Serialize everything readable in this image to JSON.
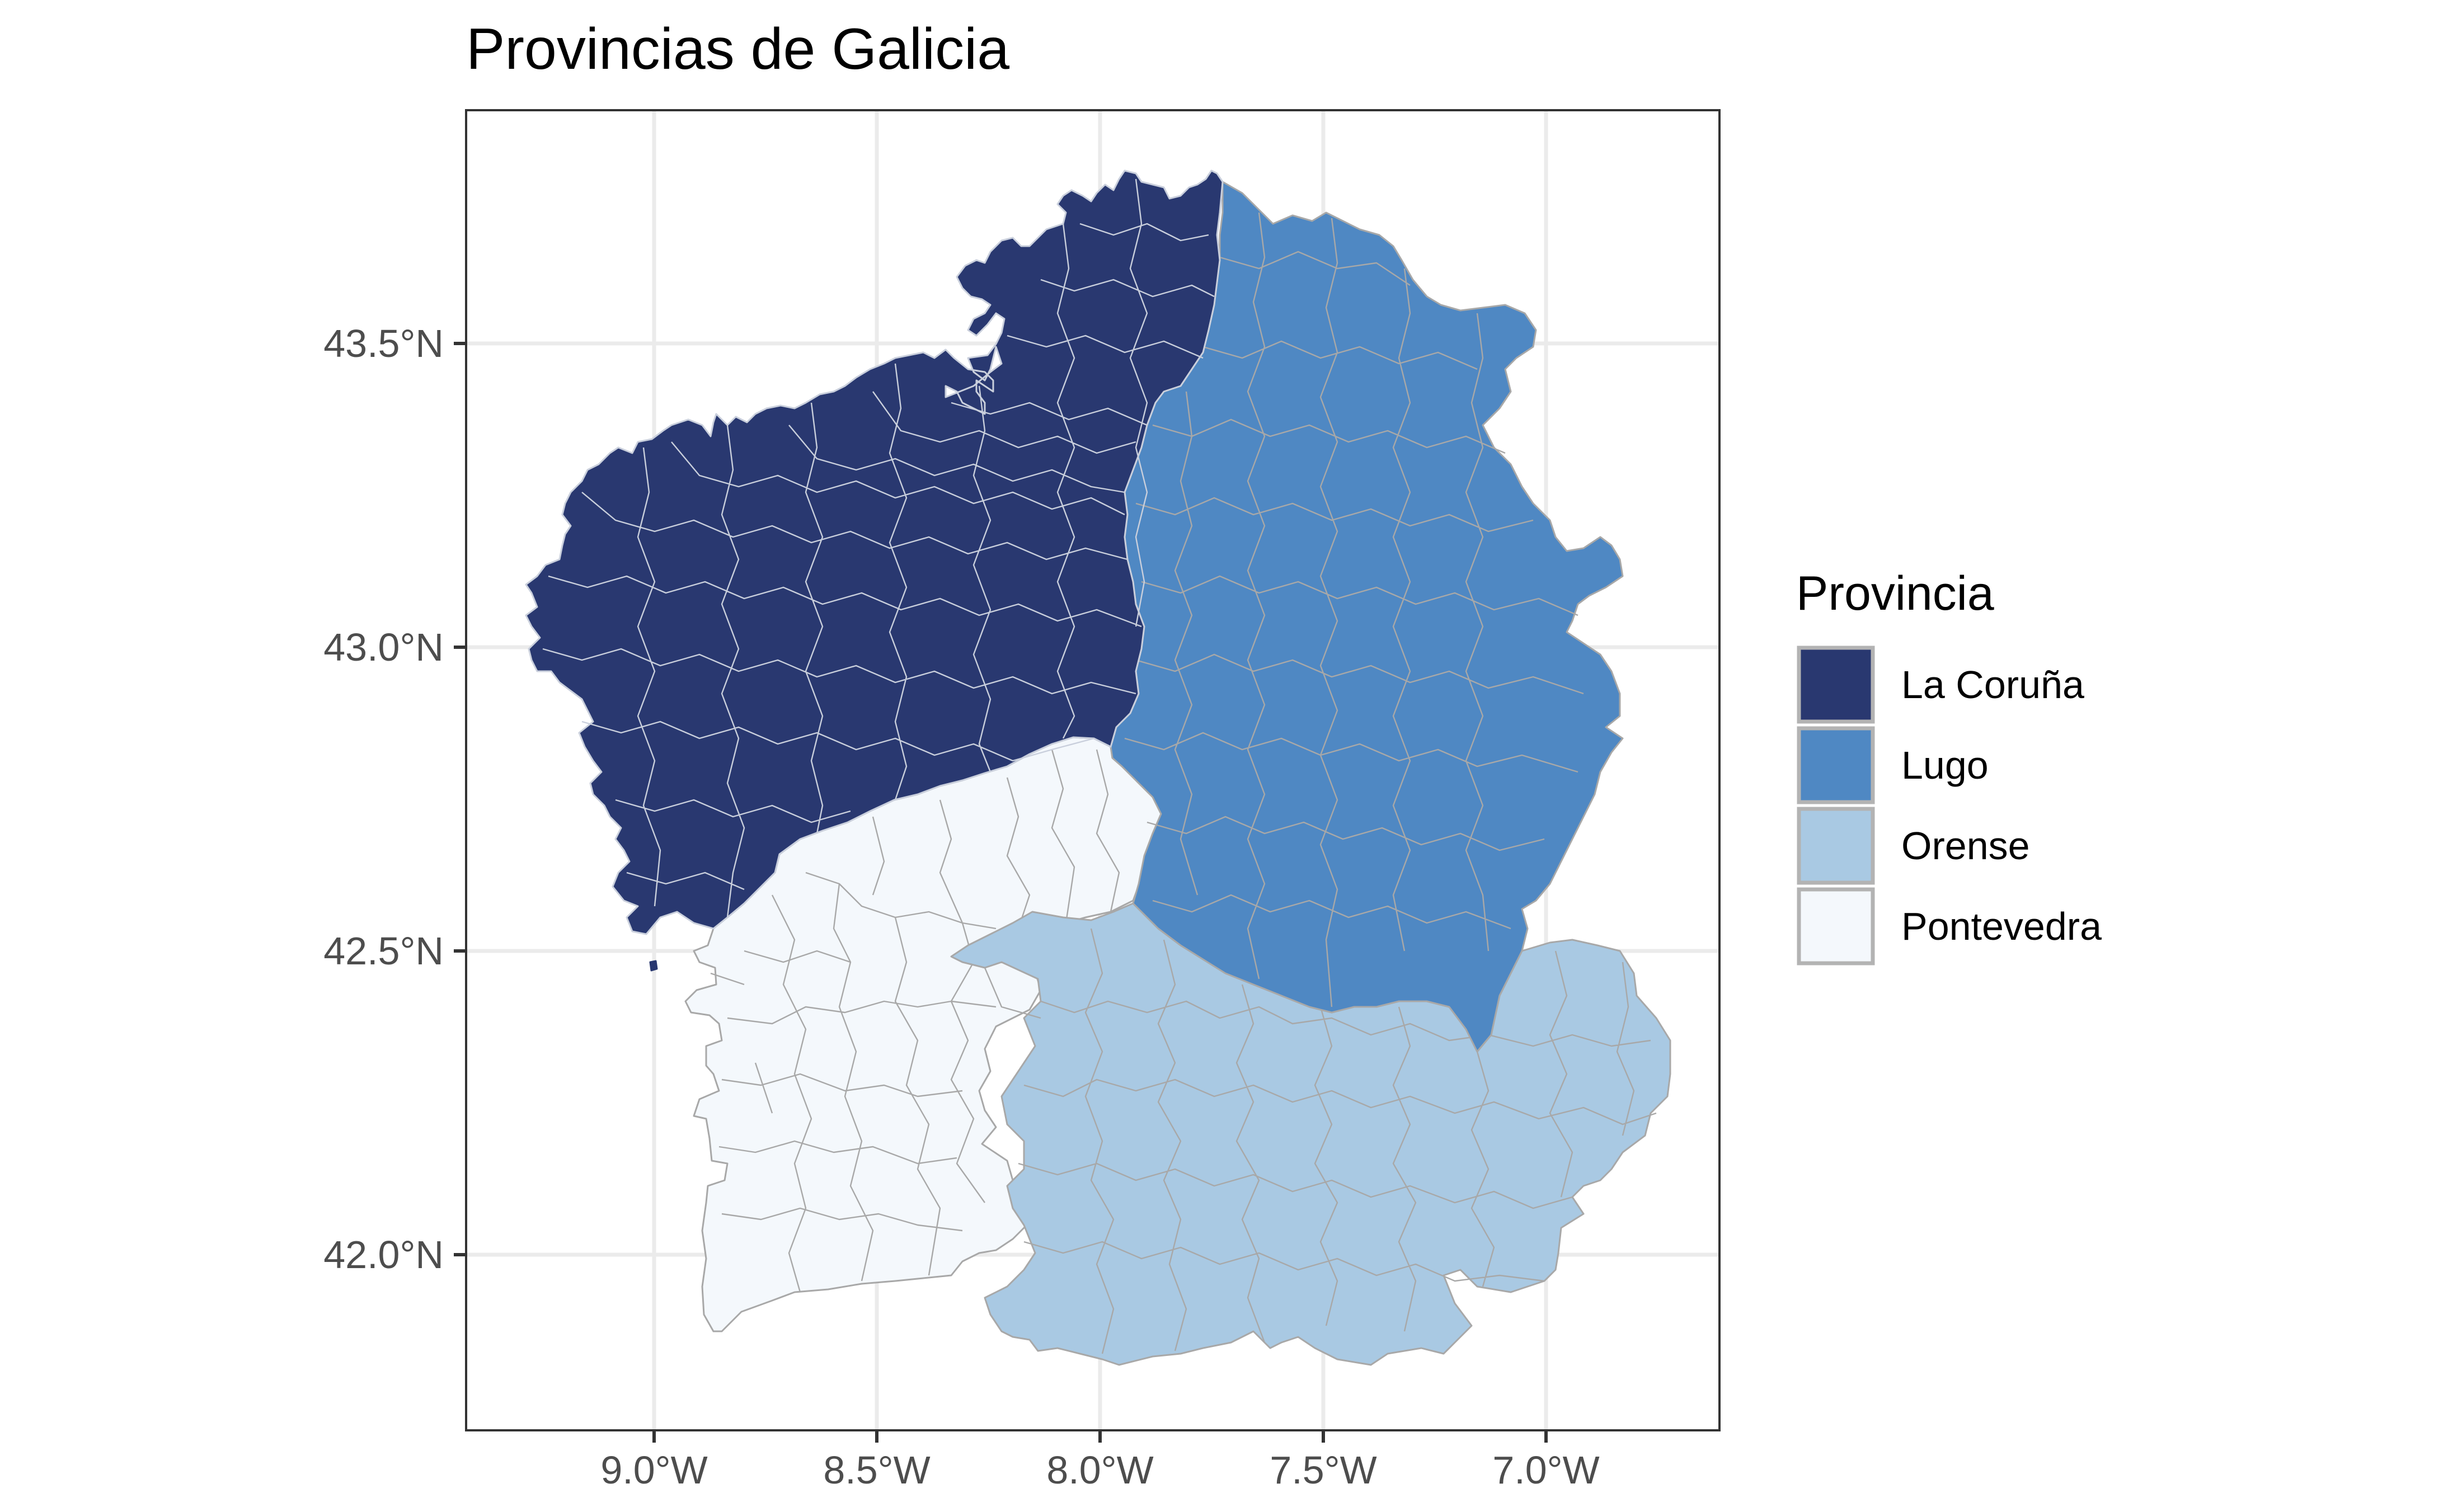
{
  "map": {
    "title": "Provincias de Galicia",
    "x_ticks": [
      "9.0°W",
      "8.5°W",
      "8.0°W",
      "7.5°W",
      "7.0°W"
    ],
    "y_ticks": [
      "43.5°N",
      "43.0°N",
      "42.5°N",
      "42.0°N"
    ],
    "legend": {
      "title": "Provincia",
      "items": [
        {
          "label": "La Coruña",
          "color": "#293870"
        },
        {
          "label": "Lugo",
          "color": "#4f88c3"
        },
        {
          "label": "Orense",
          "color": "#a9c9e3"
        },
        {
          "label": "Pontevedra",
          "color": "#f4f8fc"
        }
      ]
    },
    "colors": {
      "panel_background": "#ffffff",
      "grid": "#ebebeb",
      "border": "#333333",
      "boundary_on_dark": "#c9cfdc",
      "boundary_on_light": "#a8a8a8"
    }
  }
}
